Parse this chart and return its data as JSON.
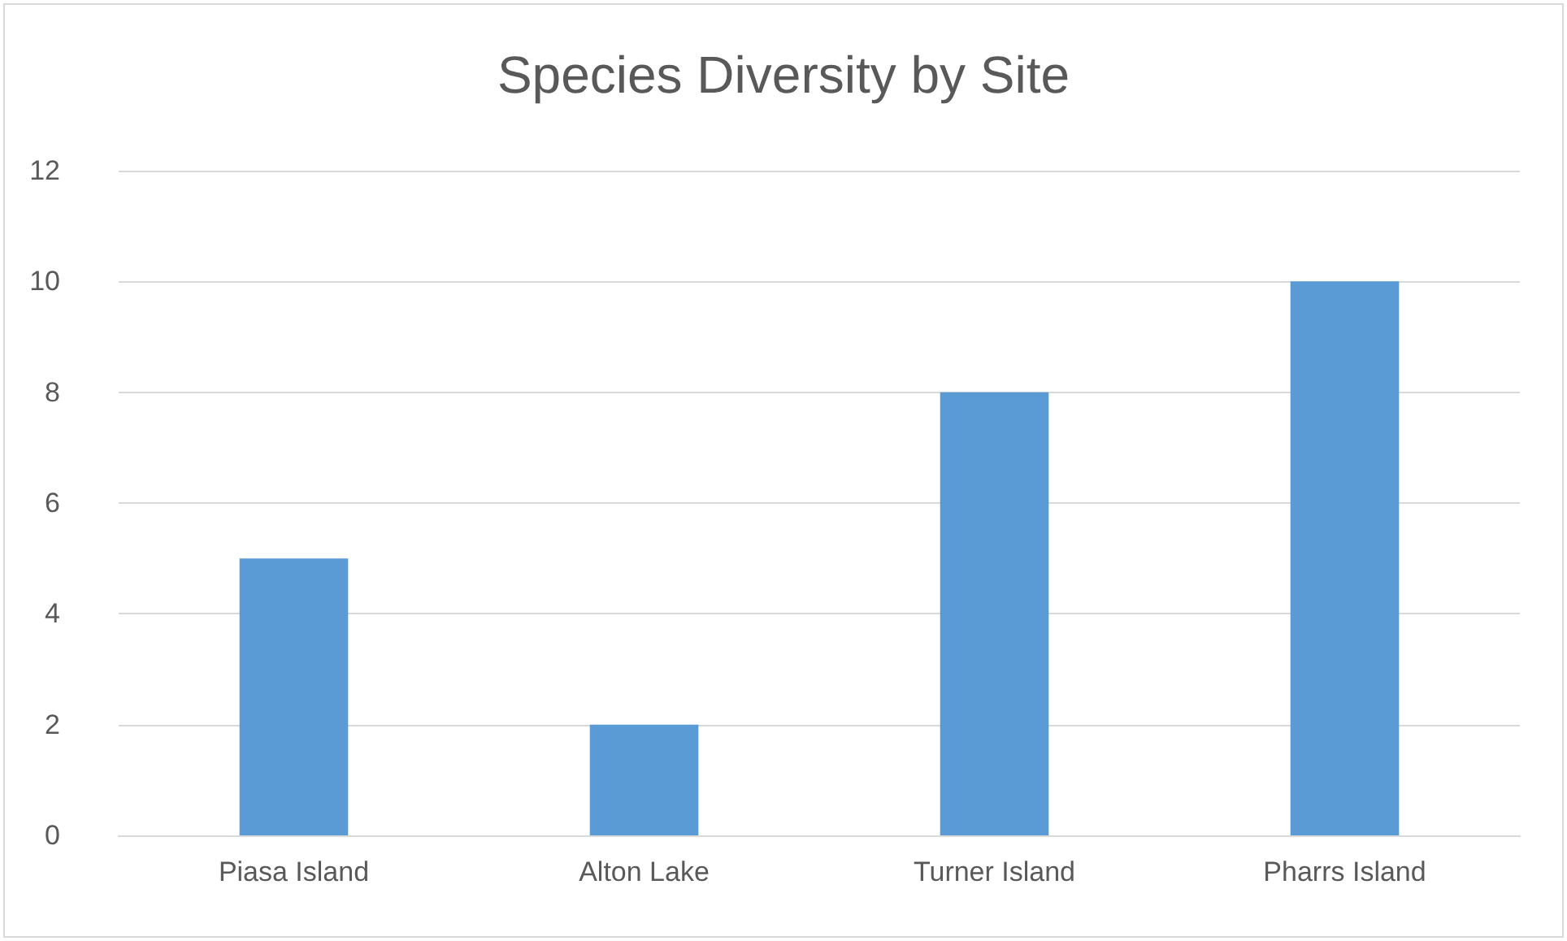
{
  "chart_data": {
    "type": "bar",
    "title": "Species Diversity by Site",
    "categories": [
      "Piasa Island",
      "Alton Lake",
      "Turner Island",
      "Pharrs Island"
    ],
    "values": [
      5,
      2,
      8,
      10
    ],
    "color": "#5b9bd5",
    "ylim": [
      0,
      12
    ],
    "yticks": [
      0,
      2,
      4,
      6,
      8,
      10,
      12
    ],
    "grid": "y"
  }
}
